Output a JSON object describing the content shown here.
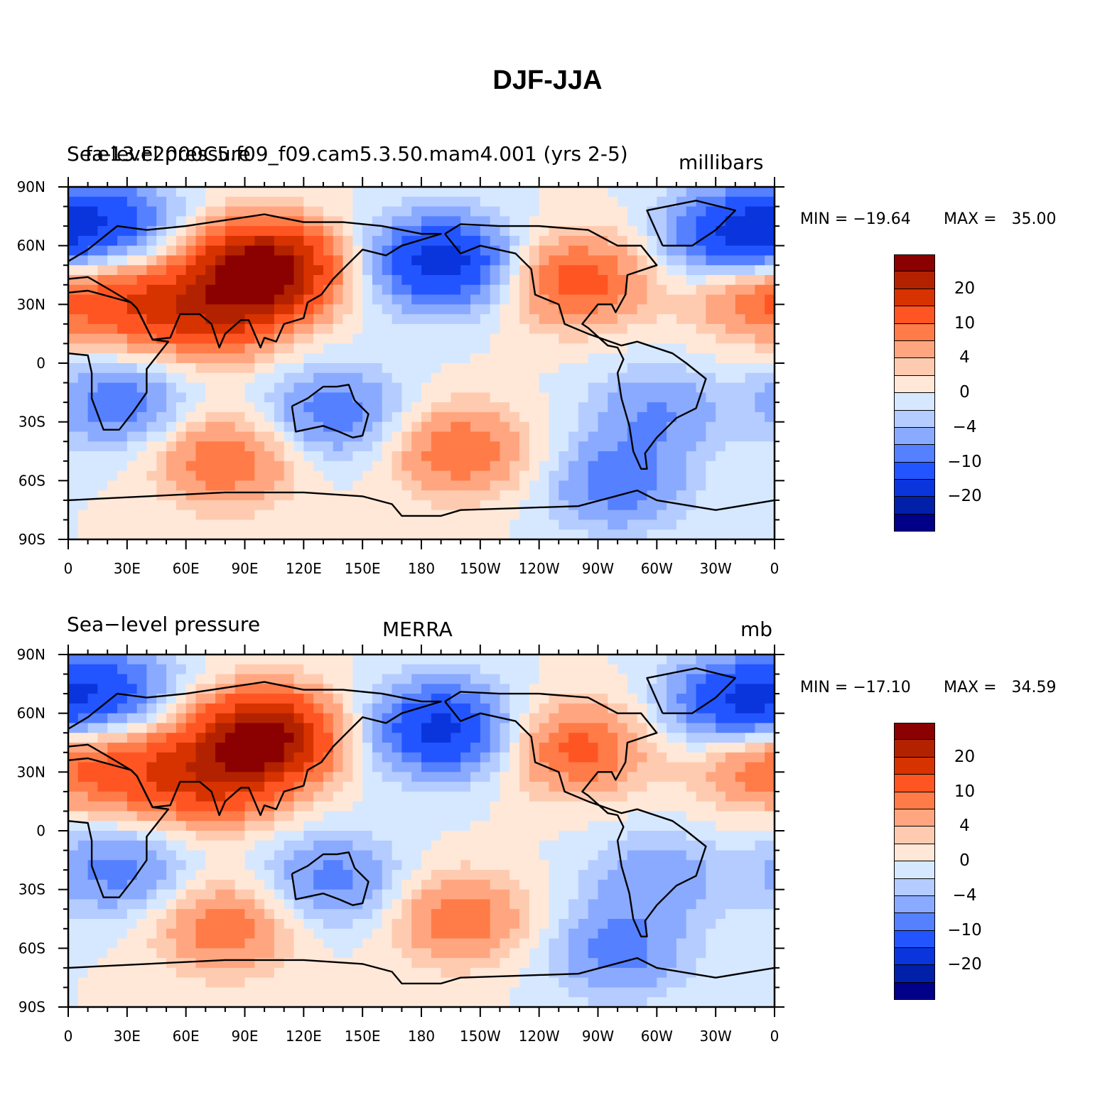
{
  "title": "DJF-JJA",
  "panels": [
    {
      "left_label": "Sea-level pressure",
      "center_label": "f.e13.F2000C5.f09_f09.cam5.3.50.mam4.001 (yrs 2-5)",
      "right_label": "millibars",
      "min_text": "MIN = −19.64",
      "max_text": "MAX =   35.00"
    },
    {
      "left_label": "Sea−level pressure",
      "center_label": "MERRA",
      "right_label": "mb",
      "min_text": "MIN = −17.10",
      "max_text": "MAX =   34.59"
    }
  ],
  "axes": {
    "lat_ticks": [
      "90N",
      "60N",
      "30N",
      "0",
      "30S",
      "60S",
      "90S"
    ],
    "lon_ticks": [
      "0",
      "30E",
      "60E",
      "90E",
      "120E",
      "150E",
      "180",
      "150W",
      "120W",
      "90W",
      "60W",
      "30W",
      "0"
    ]
  },
  "colorbar": {
    "colors": [
      "#8b0000",
      "#b22200",
      "#d63300",
      "#ff5522",
      "#ff7b48",
      "#ffa680",
      "#ffcbb0",
      "#ffe8d8",
      "#d6e8ff",
      "#b4ccff",
      "#8aaaff",
      "#5580ff",
      "#2255ff",
      "#0a35dd",
      "#0020aa",
      "#000088"
    ],
    "labels": [
      "20",
      "10",
      "4",
      "0",
      "−4",
      "−10",
      "−20"
    ]
  },
  "chart_data": {
    "type": "heatmap",
    "variable": "Sea-level pressure",
    "season_difference": "DJF-JJA",
    "units": [
      "millibars",
      "mb"
    ],
    "x_range": [
      0,
      360
    ],
    "y_range": [
      -90,
      90
    ],
    "contour_levels": [
      -25,
      -20,
      -15,
      -10,
      -7,
      -4,
      -2,
      0,
      2,
      4,
      7,
      10,
      15,
      20,
      25
    ],
    "fields": [
      {
        "name": "f.e13.F2000C5.f09_f09.cam5.3.50.mam4.001 (yrs 2-5)",
        "min": -19.64,
        "max": 35.0
      },
      {
        "name": "MERRA",
        "min": -17.1,
        "max": 34.59
      }
    ],
    "features": [
      {
        "lon": 100,
        "lat": 48,
        "value": 30
      },
      {
        "lon": 40,
        "lat": 30,
        "value": 12
      },
      {
        "lon": 78,
        "lat": 25,
        "value": 12
      },
      {
        "lon": 260,
        "lat": 42,
        "value": 12
      },
      {
        "lon": 352,
        "lat": 35,
        "value": 10
      },
      {
        "lon": 190,
        "lat": 52,
        "value": -18
      },
      {
        "lon": 340,
        "lat": 65,
        "value": -16
      },
      {
        "lon": 20,
        "lat": 72,
        "value": -12
      },
      {
        "lon": 25,
        "lat": -20,
        "value": -9
      },
      {
        "lon": 135,
        "lat": -25,
        "value": -9
      },
      {
        "lon": 300,
        "lat": -25,
        "value": -7
      },
      {
        "lon": 80,
        "lat": -50,
        "value": 10
      },
      {
        "lon": 200,
        "lat": -45,
        "value": 10
      },
      {
        "lon": 280,
        "lat": -62,
        "value": -9
      }
    ]
  }
}
